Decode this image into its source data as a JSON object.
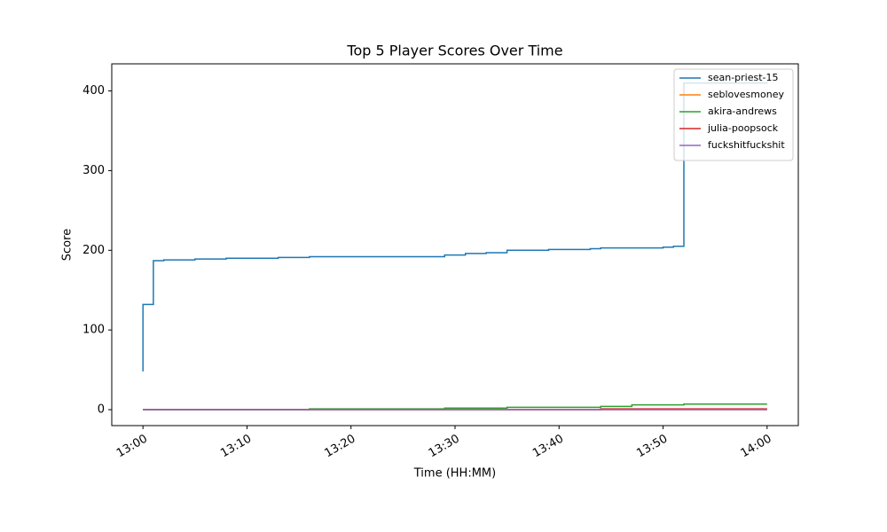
{
  "chart_data": {
    "type": "line",
    "title": "Top 5 Player Scores Over Time",
    "x_label": "Time (HH:MM)",
    "y_label": "Score",
    "x": [
      "13:00",
      "13:00",
      "13:01",
      "13:01",
      "13:02",
      "13:05",
      "13:08",
      "13:13",
      "13:16",
      "13:27",
      "13:29",
      "13:31",
      "13:33",
      "13:35",
      "13:39",
      "13:43",
      "13:44",
      "13:47",
      "13:50",
      "13:51",
      "13:52",
      "14:00"
    ],
    "drawstyle": "steps-post",
    "series": [
      {
        "name": "sean-priest-15",
        "color": "#1f77b4",
        "values": [
          48,
          132,
          150,
          187,
          188,
          189,
          190,
          191,
          192,
          192,
          194,
          196,
          197,
          200,
          201,
          202,
          203,
          203,
          204,
          205,
          410,
          411
        ]
      },
      {
        "name": "seblovesmoney",
        "color": "#ff7f0e",
        "values": [
          0,
          0,
          0,
          0,
          0,
          0,
          0,
          0,
          0,
          0,
          0,
          0,
          0,
          0,
          0,
          0,
          0,
          0,
          0,
          0,
          0,
          0
        ]
      },
      {
        "name": "akira-andrews",
        "color": "#2ca02c",
        "values": [
          0,
          0,
          0,
          0,
          0,
          0,
          0,
          0,
          1,
          1,
          2,
          2,
          2,
          3,
          3,
          3,
          4,
          6,
          6,
          6,
          7,
          7
        ]
      },
      {
        "name": "julia-poopsock",
        "color": "#d62728",
        "values": [
          0,
          0,
          0,
          0,
          0,
          0,
          0,
          0,
          0,
          0,
          0,
          0,
          0,
          0,
          0,
          0,
          1,
          1,
          1,
          1,
          1,
          1
        ]
      },
      {
        "name": "fuckshitfuckshit",
        "color": "#9467bd",
        "values": [
          0,
          0,
          0,
          0,
          0,
          0,
          0,
          0,
          0,
          0,
          0,
          0,
          0,
          0,
          0,
          0,
          0,
          0,
          0,
          0,
          0,
          0
        ]
      }
    ],
    "xlim": [
      "12:57",
      "14:03"
    ],
    "xticks": [
      "13:00",
      "13:10",
      "13:20",
      "13:30",
      "13:40",
      "13:50",
      "14:00"
    ],
    "ylim": [
      -20,
      434
    ],
    "yticks": [
      0,
      100,
      200,
      300,
      400
    ],
    "legend": "upper right",
    "grid": false
  }
}
